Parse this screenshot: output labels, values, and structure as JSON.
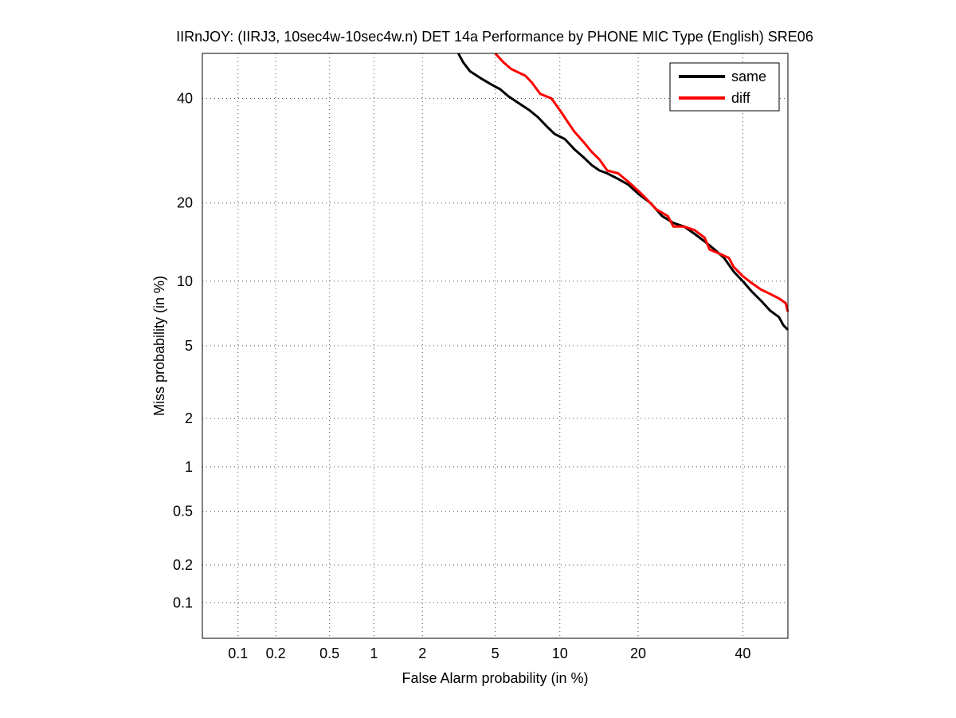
{
  "chart_data": {
    "type": "line",
    "title": "IIRnJOY: (IIRJ3, 10sec4w-10sec4w.n) DET 14a Performance by PHONE MIC Type (English) SRE06",
    "xlabel": "False Alarm probability (in %)",
    "ylabel": "Miss probability (in %)",
    "x_scale": "normal-deviate (probit)",
    "y_scale": "normal-deviate (probit)",
    "xlim": [
      0.05,
      50
    ],
    "ylim": [
      0.05,
      50
    ],
    "x_ticks": [
      0.1,
      0.2,
      0.5,
      1,
      2,
      5,
      10,
      20,
      40
    ],
    "x_tick_labels": [
      "0.1",
      "0.2",
      "0.5",
      "1",
      "2",
      "5",
      "10",
      "20",
      "40"
    ],
    "y_ticks": [
      0.1,
      0.2,
      0.5,
      1,
      2,
      5,
      10,
      20,
      40
    ],
    "y_tick_labels": [
      "0.1",
      "0.2",
      "0.5",
      "1",
      "2",
      "5",
      "10",
      "20",
      "40"
    ],
    "grid": true,
    "legend_position": "top-right",
    "series": [
      {
        "name": "same",
        "color": "#000000",
        "points": [
          [
            3.2,
            50
          ],
          [
            3.4,
            48
          ],
          [
            3.7,
            46
          ],
          [
            4.2,
            44.5
          ],
          [
            4.8,
            43
          ],
          [
            5.3,
            42
          ],
          [
            5.8,
            40.5
          ],
          [
            6.5,
            39
          ],
          [
            7.3,
            37.5
          ],
          [
            8.0,
            36
          ],
          [
            8.8,
            34
          ],
          [
            9.5,
            32.5
          ],
          [
            10.5,
            31.5
          ],
          [
            11.5,
            29.5
          ],
          [
            12.5,
            28
          ],
          [
            13.5,
            26.5
          ],
          [
            14.5,
            25.5
          ],
          [
            15.5,
            25
          ],
          [
            17,
            24
          ],
          [
            18.5,
            23
          ],
          [
            20,
            21.5
          ],
          [
            22,
            20
          ],
          [
            24,
            18
          ],
          [
            26,
            17
          ],
          [
            28,
            16.5
          ],
          [
            30,
            15.5
          ],
          [
            32,
            14.5
          ],
          [
            34,
            13.5
          ],
          [
            36,
            12.5
          ],
          [
            38,
            11
          ],
          [
            40,
            10
          ],
          [
            42,
            9
          ],
          [
            44,
            8.2
          ],
          [
            46,
            7.4
          ],
          [
            48,
            6.9
          ],
          [
            49,
            6.3
          ],
          [
            50,
            6.0
          ]
        ]
      },
      {
        "name": "diff",
        "color": "#ff0000",
        "points": [
          [
            5.0,
            50
          ],
          [
            5.5,
            48
          ],
          [
            6.0,
            46.5
          ],
          [
            7.0,
            45
          ],
          [
            7.5,
            43.5
          ],
          [
            8.2,
            41
          ],
          [
            9.2,
            40
          ],
          [
            10.0,
            37.5
          ],
          [
            10.8,
            35
          ],
          [
            11.5,
            33
          ],
          [
            12.5,
            31
          ],
          [
            13.5,
            29
          ],
          [
            14.5,
            27.5
          ],
          [
            15.5,
            25.5
          ],
          [
            17,
            25
          ],
          [
            18.5,
            23.5
          ],
          [
            20,
            22
          ],
          [
            21,
            21
          ],
          [
            23,
            19
          ],
          [
            25,
            18
          ],
          [
            26,
            16.5
          ],
          [
            28,
            16.5
          ],
          [
            30,
            16
          ],
          [
            32,
            15
          ],
          [
            33,
            13.5
          ],
          [
            35,
            13
          ],
          [
            37,
            12.5
          ],
          [
            38,
            11.5
          ],
          [
            40,
            10.5
          ],
          [
            42,
            9.8
          ],
          [
            44,
            9.2
          ],
          [
            46,
            8.8
          ],
          [
            48,
            8.4
          ],
          [
            49.5,
            8.0
          ],
          [
            50,
            7.3
          ]
        ]
      }
    ]
  }
}
